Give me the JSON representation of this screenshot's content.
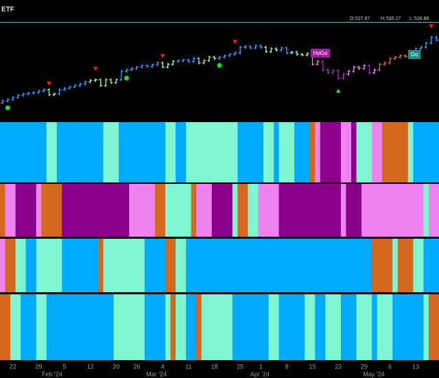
{
  "chart_data": {
    "type": "ohlc",
    "title": "ETF",
    "header": {
      "open_label": "O:",
      "open": 527.87,
      "high_label": "H:",
      "high": 530.27,
      "low_label": "L:",
      "low": 526.88
    },
    "annotations": [
      "HoGo",
      "Go"
    ],
    "months": [
      "Feb '24",
      "Mar '24",
      "Apr '24",
      "May '24"
    ],
    "categories": [
      null,
      null,
      "22",
      null,
      null,
      null,
      null,
      "29",
      null,
      null,
      null,
      null,
      "5",
      null,
      null,
      null,
      null,
      "12",
      null,
      null,
      null,
      null,
      "20",
      null,
      null,
      null,
      "26",
      null,
      null,
      null,
      null,
      "4",
      null,
      null,
      null,
      null,
      "11",
      null,
      null,
      null,
      null,
      "18",
      null,
      null,
      null,
      null,
      "25",
      null,
      null,
      null,
      "1",
      null,
      null,
      null,
      null,
      "8",
      null,
      null,
      null,
      null,
      "15",
      null,
      null,
      null,
      null,
      "22",
      null,
      null,
      null,
      null,
      "29",
      null,
      null,
      null,
      null,
      "6",
      null,
      null,
      null,
      null,
      "13",
      null,
      null,
      null,
      null
    ],
    "values": [
      486,
      487,
      488.5,
      490,
      491,
      491.5,
      492,
      493,
      494,
      490.5,
      491,
      494,
      495,
      496,
      497,
      498,
      499.5,
      500.5,
      501,
      497,
      501,
      499,
      501,
      507,
      508,
      509,
      510,
      511,
      510.5,
      511.5,
      513,
      510,
      512,
      514,
      514.5,
      515,
      514,
      516,
      513,
      514.5,
      517,
      516,
      517,
      518,
      519,
      520,
      524,
      524.5,
      523.5,
      525,
      524,
      521,
      523,
      522,
      523.5,
      520,
      520.5,
      519,
      518.5,
      519.5,
      512,
      514,
      508,
      506,
      507.5,
      502,
      505,
      507,
      510,
      509,
      511,
      506,
      508,
      512,
      513,
      516,
      517,
      518,
      517.5,
      520,
      523,
      524,
      527,
      531,
      529
    ],
    "ylim": [
      474,
      538
    ],
    "bar_palette": {
      "b": "#2f9bff",
      "g": "#a6f2a0",
      "k": "#ee82ee",
      "p": "#a030b0",
      "o": "#e0702e"
    },
    "bar_colors": "bbbbbbbbbggbbbbbbggggggbbbbbbbbgggbbbbggggbbbbbbbbbgggbbggggkkpppppkkkkpkooooooobbbbb",
    "markers": ".o.......v........v.....o......v..........o..v...................^.................v.",
    "marker_colors": {
      "v": "#e8201c",
      "o": "#22dd22",
      "^": "#22dd22"
    },
    "band_palette": {
      "B": "#00aaff",
      "C": "#7ff5d2",
      "P": "#8b008b",
      "K": "#ee82ee",
      "O": "#d2691e"
    },
    "bands": [
      "BBBBBBBBBCCBBBBBBBBBCCCBBBBBBBBBCCBBCCCCCCCCCCBBBBBCCBCCCBBBOKPPPPKKPCCCKKOOOOOCBBBBB",
      "OKKPPPPKOOOOPPPPPPPPPPPPPKKKKKOOCCCCCOKKKPPPPCOOCCKKKKPPPPPPPPPPPPKPPPKKKKKKKKKKKKCKK",
      "KOOCCBBCCCCCBBBBBBBOCCCCCCCCBBBBOOCCBBBBBBBBBBBBBBBBBBBBBBBBBBBBBBBBBBBBOOOOCOOOCCBBB",
      "OOCCBBBCCBBBBBBBBBBBBBCCCCCCBBBBCOCCBBOCCCCCCBBBBBBBCCBBBBBCCBBCCCBBBCCCBCCCBBBBBBCOO"
    ]
  }
}
